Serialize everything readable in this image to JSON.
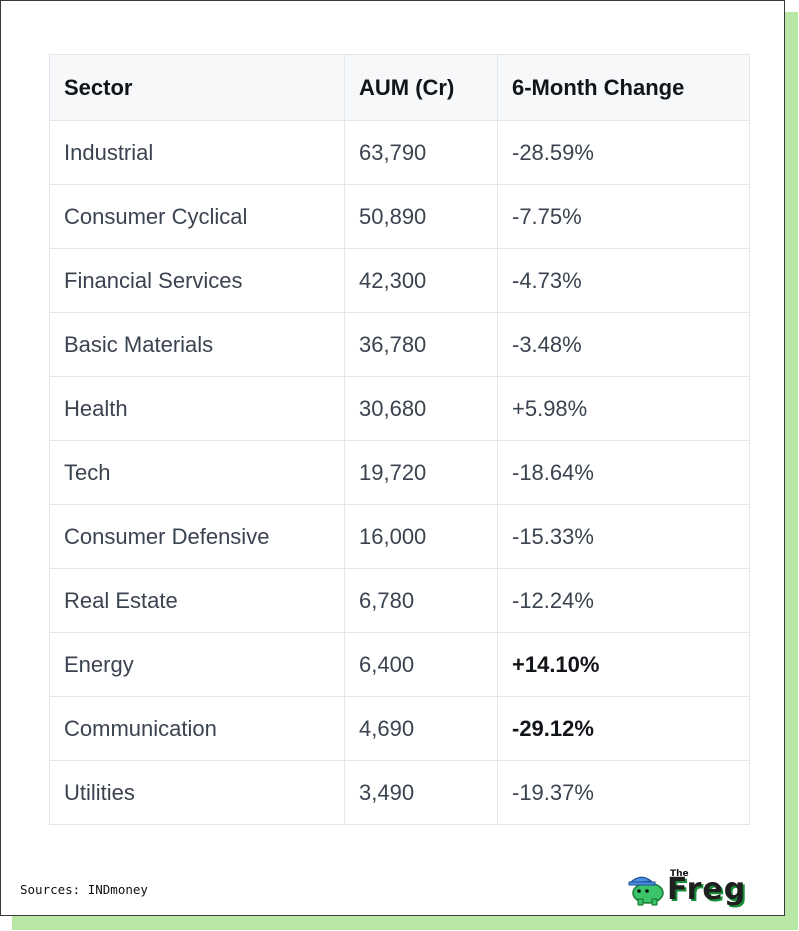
{
  "chart_data": {
    "type": "table",
    "columns": [
      "Sector",
      "AUM (Cr)",
      "6-Month Change"
    ],
    "rows": [
      {
        "sector": "Industrial",
        "aum": "63,790",
        "change": "-28.59%",
        "bold": false
      },
      {
        "sector": "Consumer Cyclical",
        "aum": "50,890",
        "change": "-7.75%",
        "bold": false
      },
      {
        "sector": "Financial Services",
        "aum": "42,300",
        "change": "-4.73%",
        "bold": false
      },
      {
        "sector": "Basic Materials",
        "aum": "36,780",
        "change": "-3.48%",
        "bold": false
      },
      {
        "sector": "Health",
        "aum": "30,680",
        "change": "+5.98%",
        "bold": false
      },
      {
        "sector": "Tech",
        "aum": "19,720",
        "change": "-18.64%",
        "bold": false
      },
      {
        "sector": "Consumer Defensive",
        "aum": "16,000",
        "change": "-15.33%",
        "bold": false
      },
      {
        "sector": "Real Estate",
        "aum": "6,780",
        "change": "-12.24%",
        "bold": false
      },
      {
        "sector": "Energy",
        "aum": "6,400",
        "change": "+14.10%",
        "bold": true
      },
      {
        "sector": "Communication",
        "aum": "4,690",
        "change": "-29.12%",
        "bold": true
      },
      {
        "sector": "Utilities",
        "aum": "3,490",
        "change": "-19.37%",
        "bold": false
      }
    ]
  },
  "footer": {
    "source": "Sources: INDmoney"
  },
  "logo": {
    "small_text": "The",
    "word": "Freg",
    "accent_color": "#1a8f3a",
    "mascot_color": "#3cc46a",
    "hat_color": "#4a8fe0",
    "icon": "frog-mascot-icon"
  },
  "colors": {
    "shadow": "#b8e6a4",
    "header_bg": "#f7f8fa",
    "border": "#e3e6ea"
  }
}
